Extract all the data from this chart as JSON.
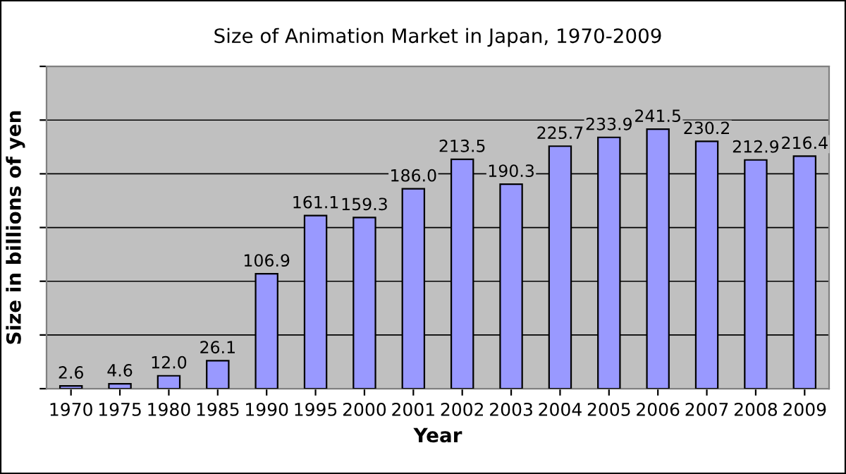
{
  "chart_data": {
    "type": "bar",
    "title": "Size of Animation Market in Japan, 1970-2009",
    "xlabel": "Year",
    "ylabel": "Size in billions of yen",
    "categories": [
      "1970",
      "1975",
      "1980",
      "1985",
      "1990",
      "1995",
      "2000",
      "2001",
      "2002",
      "2003",
      "2004",
      "2005",
      "2006",
      "2007",
      "2008",
      "2009"
    ],
    "values": [
      2.6,
      4.6,
      12.0,
      26.1,
      106.9,
      161.1,
      159.3,
      186.0,
      213.5,
      190.3,
      225.7,
      233.9,
      241.5,
      230.2,
      212.9,
      216.4
    ],
    "value_labels": [
      "2.6",
      "4.6",
      "12.0",
      "26.1",
      "106.9",
      "161.1",
      "159.3",
      "186.0",
      "213.5",
      "190.3",
      "225.7",
      "233.9",
      "241.5",
      "230.2",
      "212.9",
      "216.4"
    ],
    "color": "#9999ff",
    "ylim": [
      0,
      300
    ],
    "yticks": [
      {
        "value": 0,
        "label": null
      },
      {
        "value": 50,
        "label": null
      },
      {
        "value": 100,
        "label": null
      },
      {
        "value": 150,
        "label": null
      },
      {
        "value": 200,
        "label": null
      },
      {
        "value": 250,
        "label": null
      },
      {
        "value": 300,
        "label": null
      }
    ],
    "grid": "y"
  }
}
